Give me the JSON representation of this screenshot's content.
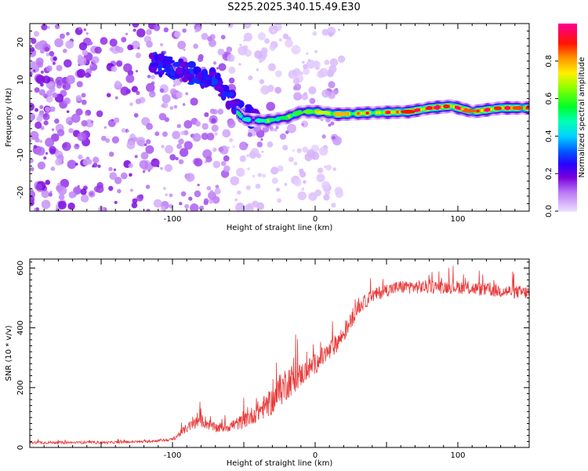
{
  "title": "S225.2025.340.15.49.E30",
  "colors": {
    "snr_line": "#e83a3a",
    "axis": "#000000",
    "spectrum_low": "#7a00d8"
  },
  "chart_data": [
    {
      "type": "heatmap",
      "name": "spectrogram",
      "xlabel": "Height of straight line (km)",
      "ylabel": "Frequency (Hz)",
      "xlim": [
        -200,
        150
      ],
      "ylim": [
        -25,
        25
      ],
      "xticks": [
        -100,
        0,
        100
      ],
      "yticks": [
        -20,
        -10,
        0,
        10,
        20
      ],
      "colorbar": {
        "label": "Normalized spectral amplitude",
        "range": [
          0,
          1
        ],
        "ticks": [
          0.0,
          0.2,
          0.4,
          0.6,
          0.8
        ]
      },
      "signal_track": [
        {
          "x": -70,
          "freq": 6.5,
          "amp": 0.25
        },
        {
          "x": -50,
          "freq": -0.5,
          "amp": 0.4
        },
        {
          "x": -35,
          "freq": -1,
          "amp": 0.45
        },
        {
          "x": -20,
          "freq": 0,
          "amp": 0.5
        },
        {
          "x": -10,
          "freq": 1.5,
          "amp": 0.55
        },
        {
          "x": 0,
          "freq": 1.5,
          "amp": 0.6
        },
        {
          "x": 15,
          "freq": 0.8,
          "amp": 0.75
        },
        {
          "x": 40,
          "freq": 1.2,
          "amp": 0.7
        },
        {
          "x": 65,
          "freq": 1.5,
          "amp": 0.85
        },
        {
          "x": 80,
          "freq": 2.5,
          "amp": 0.9
        },
        {
          "x": 95,
          "freq": 3,
          "amp": 0.85
        },
        {
          "x": 110,
          "freq": 1.5,
          "amp": 0.8
        },
        {
          "x": 130,
          "freq": 2.5,
          "amp": 0.85
        },
        {
          "x": 150,
          "freq": 2.5,
          "amp": 0.8
        }
      ],
      "noise_region": {
        "x_range": [
          -200,
          -40
        ],
        "freq_range": [
          -25,
          25
        ],
        "amp": 0.15
      }
    },
    {
      "type": "line",
      "name": "snr",
      "xlabel": "Height of straight line (km)",
      "ylabel": "SNR (10 * v/v)",
      "xlim": [
        -200,
        150
      ],
      "ylim": [
        0,
        630
      ],
      "xticks": [
        -100,
        0,
        100
      ],
      "yticks": [
        0,
        200,
        400,
        600
      ],
      "series": [
        {
          "name": "SNR",
          "x": [
            -200,
            -150,
            -120,
            -100,
            -90,
            -80,
            -70,
            -60,
            -50,
            -40,
            -30,
            -20,
            -10,
            0,
            10,
            20,
            30,
            40,
            50,
            60,
            80,
            100,
            120,
            150
          ],
          "y": [
            15,
            15,
            18,
            25,
            60,
            85,
            60,
            65,
            80,
            110,
            140,
            200,
            230,
            270,
            310,
            370,
            460,
            500,
            520,
            530,
            530,
            530,
            520,
            510
          ],
          "spread": [
            10,
            8,
            8,
            10,
            30,
            50,
            30,
            40,
            50,
            70,
            90,
            120,
            80,
            70,
            70,
            60,
            50,
            45,
            45,
            45,
            45,
            45,
            45,
            45
          ]
        }
      ]
    }
  ]
}
